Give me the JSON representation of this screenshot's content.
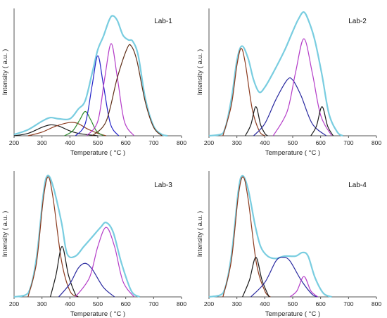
{
  "colors": {
    "envelope": "#79cde0",
    "peak_brown": "#8b3a1e",
    "peak_black": "#1a1a1a",
    "peak_green": "#2f8a2f",
    "peak_blue": "#2323c8",
    "peak_magenta": "#b43cc8",
    "peak_darkbrown": "#5e2d16",
    "peak_navy": "#2a2aa0"
  },
  "chart_data": [
    {
      "type": "line",
      "title": "Lab-1",
      "xlabel": "Temperature ( °C )",
      "ylabel": "Intensity ( a.u. )",
      "xlim": [
        200,
        800
      ],
      "xticks": [
        200,
        300,
        400,
        500,
        600,
        700,
        800
      ],
      "ylim": [
        0,
        1.05
      ],
      "grid": false,
      "series": [
        {
          "color": "peak_black",
          "values": [
            [
              200,
              0
            ],
            [
              250,
              0.02
            ],
            [
              300,
              0.07
            ],
            [
              330,
              0.09
            ],
            [
              360,
              0.08
            ],
            [
              400,
              0.04
            ],
            [
              430,
              0.02
            ],
            [
              460,
              0.01
            ],
            [
              500,
              0
            ]
          ]
        },
        {
          "color": "peak_brown",
          "values": [
            [
              250,
              0
            ],
            [
              300,
              0.03
            ],
            [
              350,
              0.08
            ],
            [
              400,
              0.11
            ],
            [
              430,
              0.1
            ],
            [
              460,
              0.06
            ],
            [
              500,
              0.02
            ],
            [
              530,
              0
            ]
          ]
        },
        {
          "color": "peak_green",
          "values": [
            [
              380,
              0
            ],
            [
              410,
              0.04
            ],
            [
              435,
              0.13
            ],
            [
              455,
              0.2
            ],
            [
              475,
              0.13
            ],
            [
              495,
              0.04
            ],
            [
              520,
              0
            ]
          ]
        },
        {
          "color": "peak_blue",
          "values": [
            [
              420,
              0
            ],
            [
              455,
              0.1
            ],
            [
              480,
              0.42
            ],
            [
              500,
              0.66
            ],
            [
              520,
              0.42
            ],
            [
              545,
              0.1
            ],
            [
              575,
              0
            ]
          ]
        },
        {
          "color": "peak_magenta",
          "values": [
            [
              460,
              0
            ],
            [
              500,
              0.12
            ],
            [
              525,
              0.48
            ],
            [
              548,
              0.76
            ],
            [
              570,
              0.48
            ],
            [
              595,
              0.12
            ],
            [
              630,
              0
            ]
          ]
        },
        {
          "color": "peak_darkbrown",
          "values": [
            [
              480,
              0
            ],
            [
              530,
              0.12
            ],
            [
              570,
              0.48
            ],
            [
              605,
              0.72
            ],
            [
              620,
              0.74
            ],
            [
              640,
              0.62
            ],
            [
              670,
              0.28
            ],
            [
              700,
              0.07
            ],
            [
              730,
              0
            ]
          ]
        },
        {
          "color": "envelope",
          "envelope": true,
          "values": [
            [
              200,
              0.01
            ],
            [
              250,
              0.05
            ],
            [
              300,
              0.12
            ],
            [
              330,
              0.15
            ],
            [
              360,
              0.14
            ],
            [
              400,
              0.14
            ],
            [
              430,
              0.22
            ],
            [
              455,
              0.29
            ],
            [
              480,
              0.52
            ],
            [
              500,
              0.71
            ],
            [
              520,
              0.82
            ],
            [
              540,
              0.95
            ],
            [
              553,
              0.99
            ],
            [
              570,
              0.95
            ],
            [
              590,
              0.83
            ],
            [
              610,
              0.79
            ],
            [
              625,
              0.78
            ],
            [
              645,
              0.66
            ],
            [
              670,
              0.31
            ],
            [
              700,
              0.08
            ],
            [
              730,
              0.01
            ],
            [
              750,
              0
            ]
          ]
        }
      ]
    },
    {
      "type": "line",
      "title": "Lab-2",
      "xlabel": "Temperature ( °C )",
      "ylabel": "Intensity ( a.u. )",
      "xlim": [
        200,
        800
      ],
      "xticks": [
        200,
        300,
        400,
        500,
        600,
        700,
        800
      ],
      "ylim": [
        0,
        1.05
      ],
      "grid": false,
      "series": [
        {
          "color": "peak_brown",
          "values": [
            [
              250,
              0
            ],
            [
              280,
              0.25
            ],
            [
              300,
              0.58
            ],
            [
              315,
              0.72
            ],
            [
              330,
              0.6
            ],
            [
              355,
              0.22
            ],
            [
              380,
              0.04
            ],
            [
              400,
              0
            ]
          ]
        },
        {
          "color": "peak_black",
          "values": [
            [
              330,
              0
            ],
            [
              350,
              0.09
            ],
            [
              368,
              0.24
            ],
            [
              385,
              0.09
            ],
            [
              400,
              0.02
            ],
            [
              410,
              0
            ]
          ]
        },
        {
          "color": "peak_navy",
          "values": [
            [
              360,
              0
            ],
            [
              400,
              0.1
            ],
            [
              440,
              0.3
            ],
            [
              480,
              0.46
            ],
            [
              500,
              0.46
            ],
            [
              530,
              0.33
            ],
            [
              570,
              0.1
            ],
            [
              620,
              0
            ]
          ]
        },
        {
          "color": "peak_magenta",
          "values": [
            [
              430,
              0
            ],
            [
              480,
              0.2
            ],
            [
              510,
              0.52
            ],
            [
              540,
              0.8
            ],
            [
              570,
              0.52
            ],
            [
              600,
              0.17
            ],
            [
              640,
              0
            ]
          ]
        },
        {
          "color": "peak_black",
          "values": [
            [
              565,
              0
            ],
            [
              585,
              0.08
            ],
            [
              605,
              0.24
            ],
            [
              625,
              0.08
            ],
            [
              645,
              0
            ]
          ]
        },
        {
          "color": "envelope",
          "envelope": true,
          "values": [
            [
              200,
              0
            ],
            [
              250,
              0.02
            ],
            [
              280,
              0.3
            ],
            [
              300,
              0.62
            ],
            [
              318,
              0.74
            ],
            [
              340,
              0.64
            ],
            [
              360,
              0.46
            ],
            [
              380,
              0.36
            ],
            [
              400,
              0.4
            ],
            [
              430,
              0.52
            ],
            [
              470,
              0.7
            ],
            [
              500,
              0.86
            ],
            [
              520,
              0.96
            ],
            [
              540,
              1.02
            ],
            [
              560,
              0.93
            ],
            [
              580,
              0.78
            ],
            [
              605,
              0.5
            ],
            [
              630,
              0.18
            ],
            [
              660,
              0.03
            ],
            [
              680,
              0
            ]
          ]
        }
      ]
    },
    {
      "type": "line",
      "title": "Lab-3",
      "xlabel": "Temperature ( °C )",
      "ylabel": "Intensity ( a.u. )",
      "xlim": [
        200,
        800
      ],
      "xticks": [
        200,
        300,
        400,
        500,
        600,
        700,
        800
      ],
      "ylim": [
        0,
        1.05
      ],
      "grid": false,
      "series": [
        {
          "color": "peak_brown",
          "values": [
            [
              250,
              0
            ],
            [
              280,
              0.28
            ],
            [
              305,
              0.82
            ],
            [
              322,
              1.0
            ],
            [
              340,
              0.82
            ],
            [
              370,
              0.3
            ],
            [
              400,
              0.05
            ],
            [
              430,
              0
            ]
          ]
        },
        {
          "color": "peak_black",
          "values": [
            [
              330,
              0
            ],
            [
              350,
              0.18
            ],
            [
              372,
              0.42
            ],
            [
              395,
              0.18
            ],
            [
              420,
              0.02
            ],
            [
              430,
              0
            ]
          ]
        },
        {
          "color": "peak_navy",
          "values": [
            [
              360,
              0
            ],
            [
              400,
              0.11
            ],
            [
              430,
              0.24
            ],
            [
              455,
              0.28
            ],
            [
              480,
              0.23
            ],
            [
              520,
              0.08
            ],
            [
              560,
              0
            ]
          ]
        },
        {
          "color": "peak_magenta",
          "values": [
            [
              420,
              0
            ],
            [
              470,
              0.16
            ],
            [
              500,
              0.42
            ],
            [
              530,
              0.58
            ],
            [
              560,
              0.42
            ],
            [
              590,
              0.13
            ],
            [
              630,
              0
            ]
          ]
        },
        {
          "color": "envelope",
          "envelope": true,
          "values": [
            [
              200,
              0
            ],
            [
              250,
              0.03
            ],
            [
              280,
              0.32
            ],
            [
              305,
              0.86
            ],
            [
              320,
              1.01
            ],
            [
              340,
              0.92
            ],
            [
              370,
              0.62
            ],
            [
              390,
              0.36
            ],
            [
              420,
              0.34
            ],
            [
              450,
              0.42
            ],
            [
              480,
              0.5
            ],
            [
              510,
              0.58
            ],
            [
              530,
              0.62
            ],
            [
              555,
              0.54
            ],
            [
              585,
              0.28
            ],
            [
              620,
              0.05
            ],
            [
              650,
              0
            ]
          ]
        }
      ]
    },
    {
      "type": "line",
      "title": "Lab-4",
      "xlabel": "Temperature ( °C )",
      "ylabel": "Intensity ( a.u. )",
      "xlim": [
        200,
        800
      ],
      "xticks": [
        200,
        300,
        400,
        500,
        600,
        700,
        800
      ],
      "ylim": [
        0,
        1.05
      ],
      "grid": false,
      "series": [
        {
          "color": "peak_brown",
          "values": [
            [
              250,
              0
            ],
            [
              280,
              0.3
            ],
            [
              305,
              0.84
            ],
            [
              322,
              1.0
            ],
            [
              340,
              0.82
            ],
            [
              370,
              0.28
            ],
            [
              400,
              0.05
            ],
            [
              420,
              0
            ]
          ]
        },
        {
          "color": "peak_black",
          "values": [
            [
              320,
              0
            ],
            [
              345,
              0.14
            ],
            [
              368,
              0.33
            ],
            [
              390,
              0.14
            ],
            [
              415,
              0
            ]
          ]
        },
        {
          "color": "peak_navy",
          "values": [
            [
              350,
              0
            ],
            [
              400,
              0.12
            ],
            [
              440,
              0.3
            ],
            [
              465,
              0.33
            ],
            [
              490,
              0.3
            ],
            [
              530,
              0.14
            ],
            [
              570,
              0.02
            ],
            [
              590,
              0
            ]
          ]
        },
        {
          "color": "peak_magenta",
          "values": [
            [
              490,
              0
            ],
            [
              515,
              0.05
            ],
            [
              540,
              0.17
            ],
            [
              565,
              0.05
            ],
            [
              590,
              0
            ]
          ]
        },
        {
          "color": "envelope",
          "envelope": true,
          "values": [
            [
              200,
              0
            ],
            [
              250,
              0.03
            ],
            [
              280,
              0.34
            ],
            [
              305,
              0.88
            ],
            [
              320,
              1.01
            ],
            [
              340,
              0.9
            ],
            [
              365,
              0.6
            ],
            [
              385,
              0.42
            ],
            [
              410,
              0.34
            ],
            [
              440,
              0.32
            ],
            [
              470,
              0.34
            ],
            [
              510,
              0.34
            ],
            [
              535,
              0.37
            ],
            [
              555,
              0.34
            ],
            [
              580,
              0.16
            ],
            [
              610,
              0.03
            ],
            [
              640,
              0
            ]
          ]
        }
      ]
    }
  ]
}
